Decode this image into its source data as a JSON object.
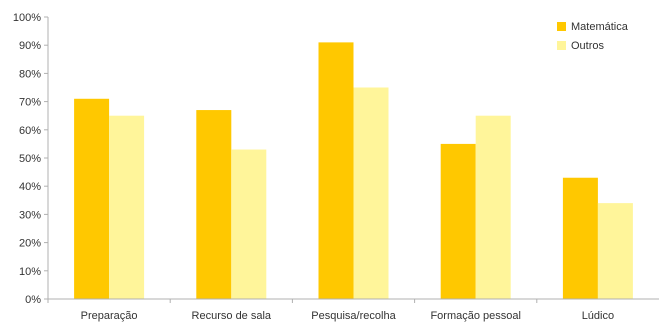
{
  "chart_data": {
    "type": "bar",
    "categories": [
      "Preparação",
      "Recurso de sala",
      "Pesquisa/recolha",
      "Formação pessoal",
      "Lúdico"
    ],
    "series": [
      {
        "name": "Matemática",
        "values": [
          71,
          67,
          91,
          55,
          43
        ],
        "color": "#FFC800"
      },
      {
        "name": "Outros",
        "values": [
          65,
          53,
          75,
          65,
          34
        ],
        "color": "#FFF59A"
      }
    ],
    "ylim": [
      0,
      100
    ],
    "yticks": [
      0,
      10,
      20,
      30,
      40,
      50,
      60,
      70,
      80,
      90,
      100
    ],
    "ytick_suffix": "%",
    "legend_position": "top-right",
    "grid": false
  }
}
